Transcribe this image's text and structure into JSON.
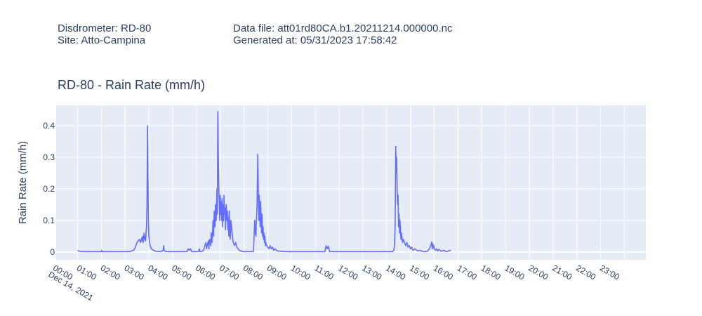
{
  "header": {
    "disdrometer": "Disdrometer: RD-80",
    "site": "Site: Atto-Campina",
    "data_file": "Data file: att01rd80CA.b1.20211214.000000.nc",
    "generated_at": "Generated at: 05/31/2023 17:58:42"
  },
  "chart_data": {
    "type": "line",
    "title": "RD-80 - Rain Rate (mm/h)",
    "xlabel": "",
    "ylabel": "Rain Rate (mm/h)",
    "date_label": "Dec 14, 2021",
    "x_unit": "hours since 00:00, Dec 14, 2021 (axis shows hour-of-day)",
    "xlim": [
      -0.9,
      23.9
    ],
    "ylim": [
      -0.025,
      0.465
    ],
    "x_ticks": [
      0,
      1,
      2,
      3,
      4,
      5,
      6,
      7,
      8,
      9,
      10,
      11,
      12,
      13,
      14,
      15,
      16,
      17,
      18,
      19,
      20,
      21,
      22,
      23
    ],
    "x_tick_labels": [
      "00:00",
      "01:00",
      "02:00",
      "03:00",
      "04:00",
      "05:00",
      "06:00",
      "07:00",
      "08:00",
      "09:00",
      "10:00",
      "11:00",
      "12:00",
      "13:00",
      "14:00",
      "15:00",
      "16:00",
      "17:00",
      "18:00",
      "19:00",
      "20:00",
      "21:00",
      "22:00",
      "23:00"
    ],
    "y_ticks": [
      0,
      0.1,
      0.2,
      0.3,
      0.4
    ],
    "y_tick_labels": [
      "0",
      "0.1",
      "0.2",
      "0.3",
      "0.4"
    ],
    "grid": true,
    "line_color": "#636efa",
    "plot_bgcolor": "#e5ecf6",
    "series": [
      {
        "x": [
          0.0,
          0.05,
          0.1,
          0.2,
          0.3,
          0.5,
          0.8,
          1.0,
          1.02,
          1.04,
          1.2,
          1.4,
          1.6,
          1.8,
          2.0,
          2.2,
          2.35,
          2.4,
          2.45,
          2.5,
          2.55,
          2.6,
          2.65,
          2.7,
          2.72,
          2.74,
          2.76,
          2.78,
          2.8,
          2.82,
          2.84,
          2.86,
          2.88,
          2.9,
          2.92,
          2.94,
          2.96,
          2.98,
          3.0,
          3.05,
          3.1,
          3.2,
          3.3,
          3.5,
          3.6,
          3.62,
          3.64,
          3.7,
          3.8,
          4.0,
          4.2,
          4.4,
          4.6,
          4.65,
          4.7,
          4.75,
          4.8,
          5.0,
          5.1,
          5.12,
          5.14,
          5.2,
          5.3,
          5.35,
          5.4,
          5.42,
          5.45,
          5.5,
          5.52,
          5.55,
          5.6,
          5.62,
          5.65,
          5.7,
          5.72,
          5.75,
          5.78,
          5.8,
          5.83,
          5.86,
          5.88,
          5.9,
          5.92,
          5.94,
          5.96,
          5.98,
          6.0,
          6.02,
          6.04,
          6.06,
          6.08,
          6.1,
          6.12,
          6.14,
          6.16,
          6.18,
          6.2,
          6.22,
          6.25,
          6.28,
          6.3,
          6.32,
          6.34,
          6.36,
          6.38,
          6.4,
          6.42,
          6.45,
          6.5,
          6.55,
          6.6,
          6.65,
          6.7,
          6.75,
          6.8,
          6.9,
          7.0,
          7.1,
          7.2,
          7.3,
          7.4,
          7.45,
          7.48,
          7.5,
          7.52,
          7.55,
          7.58,
          7.6,
          7.62,
          7.64,
          7.66,
          7.68,
          7.7,
          7.72,
          7.74,
          7.76,
          7.78,
          7.8,
          7.82,
          7.84,
          7.86,
          7.88,
          7.9,
          7.92,
          7.95,
          8.0,
          8.05,
          8.1,
          8.15,
          8.2,
          8.25,
          8.3,
          8.4,
          8.6,
          8.8,
          9.0,
          9.5,
          10.0,
          10.4,
          10.45,
          10.5,
          10.55,
          10.6,
          11.0,
          11.5,
          12.0,
          12.5,
          13.0,
          13.1,
          13.2,
          13.25,
          13.3,
          13.33,
          13.36,
          13.38,
          13.4,
          13.42,
          13.44,
          13.46,
          13.48,
          13.5,
          13.52,
          13.54,
          13.56,
          13.58,
          13.6,
          13.62,
          13.64,
          13.66,
          13.7,
          13.75,
          13.8,
          13.85,
          13.9,
          13.95,
          14.0,
          14.05,
          14.1,
          14.2,
          14.3,
          14.4,
          14.5,
          14.6,
          14.7,
          14.8,
          14.85,
          14.9,
          14.92,
          14.94,
          14.96,
          14.98,
          15.0,
          15.05,
          15.1,
          15.15,
          15.2,
          15.3,
          15.4,
          15.5,
          15.6,
          15.65,
          15.7
        ],
        "y": [
          0.005,
          0.003,
          0.002,
          0.001,
          0.001,
          0.001,
          0.001,
          0.001,
          0.005,
          0.001,
          0.001,
          0.001,
          0.001,
          0.001,
          0.001,
          0.001,
          0.005,
          0.01,
          0.02,
          0.03,
          0.035,
          0.04,
          0.03,
          0.045,
          0.035,
          0.05,
          0.03,
          0.045,
          0.06,
          0.04,
          0.05,
          0.035,
          0.06,
          0.08,
          0.15,
          0.4,
          0.25,
          0.1,
          0.05,
          0.02,
          0.01,
          0.005,
          0.002,
          0.001,
          0.005,
          0.02,
          0.005,
          0.001,
          0.001,
          0.001,
          0.001,
          0.001,
          0.001,
          0.01,
          0.005,
          0.01,
          0.001,
          0.001,
          0.002,
          0.01,
          0.002,
          0.001,
          0.005,
          0.02,
          0.03,
          0.01,
          0.02,
          0.035,
          0.01,
          0.04,
          0.02,
          0.06,
          0.03,
          0.1,
          0.05,
          0.13,
          0.08,
          0.15,
          0.1,
          0.2,
          0.12,
          0.445,
          0.3,
          0.2,
          0.15,
          0.1,
          0.18,
          0.12,
          0.16,
          0.1,
          0.17,
          0.08,
          0.15,
          0.1,
          0.18,
          0.12,
          0.14,
          0.07,
          0.15,
          0.1,
          0.13,
          0.07,
          0.11,
          0.05,
          0.13,
          0.08,
          0.04,
          0.1,
          0.06,
          0.03,
          0.02,
          0.03,
          0.015,
          0.01,
          0.005,
          0.002,
          0.001,
          0.001,
          0.001,
          0.001,
          0.002,
          0.1,
          0.06,
          0.05,
          0.1,
          0.15,
          0.31,
          0.2,
          0.1,
          0.18,
          0.12,
          0.08,
          0.16,
          0.1,
          0.06,
          0.12,
          0.05,
          0.08,
          0.04,
          0.06,
          0.03,
          0.05,
          0.02,
          0.03,
          0.02,
          0.015,
          0.01,
          0.02,
          0.01,
          0.015,
          0.005,
          0.01,
          0.003,
          0.002,
          0.001,
          0.001,
          0.001,
          0.001,
          0.001,
          0.02,
          0.01,
          0.018,
          0.001,
          0.001,
          0.001,
          0.001,
          0.001,
          0.001,
          0.001,
          0.001,
          0.001,
          0.005,
          0.02,
          0.1,
          0.335,
          0.25,
          0.3,
          0.2,
          0.15,
          0.18,
          0.08,
          0.12,
          0.06,
          0.1,
          0.07,
          0.04,
          0.06,
          0.05,
          0.03,
          0.04,
          0.03,
          0.02,
          0.03,
          0.015,
          0.02,
          0.01,
          0.015,
          0.005,
          0.01,
          0.003,
          0.005,
          0.002,
          0.001,
          0.002,
          0.01,
          0.02,
          0.032,
          0.01,
          0.025,
          0.015,
          0.02,
          0.01,
          0.005,
          0.01,
          0.003,
          0.008,
          0.002,
          0.005,
          0.001,
          0.003,
          0.005,
          0.004
        ]
      }
    ]
  }
}
